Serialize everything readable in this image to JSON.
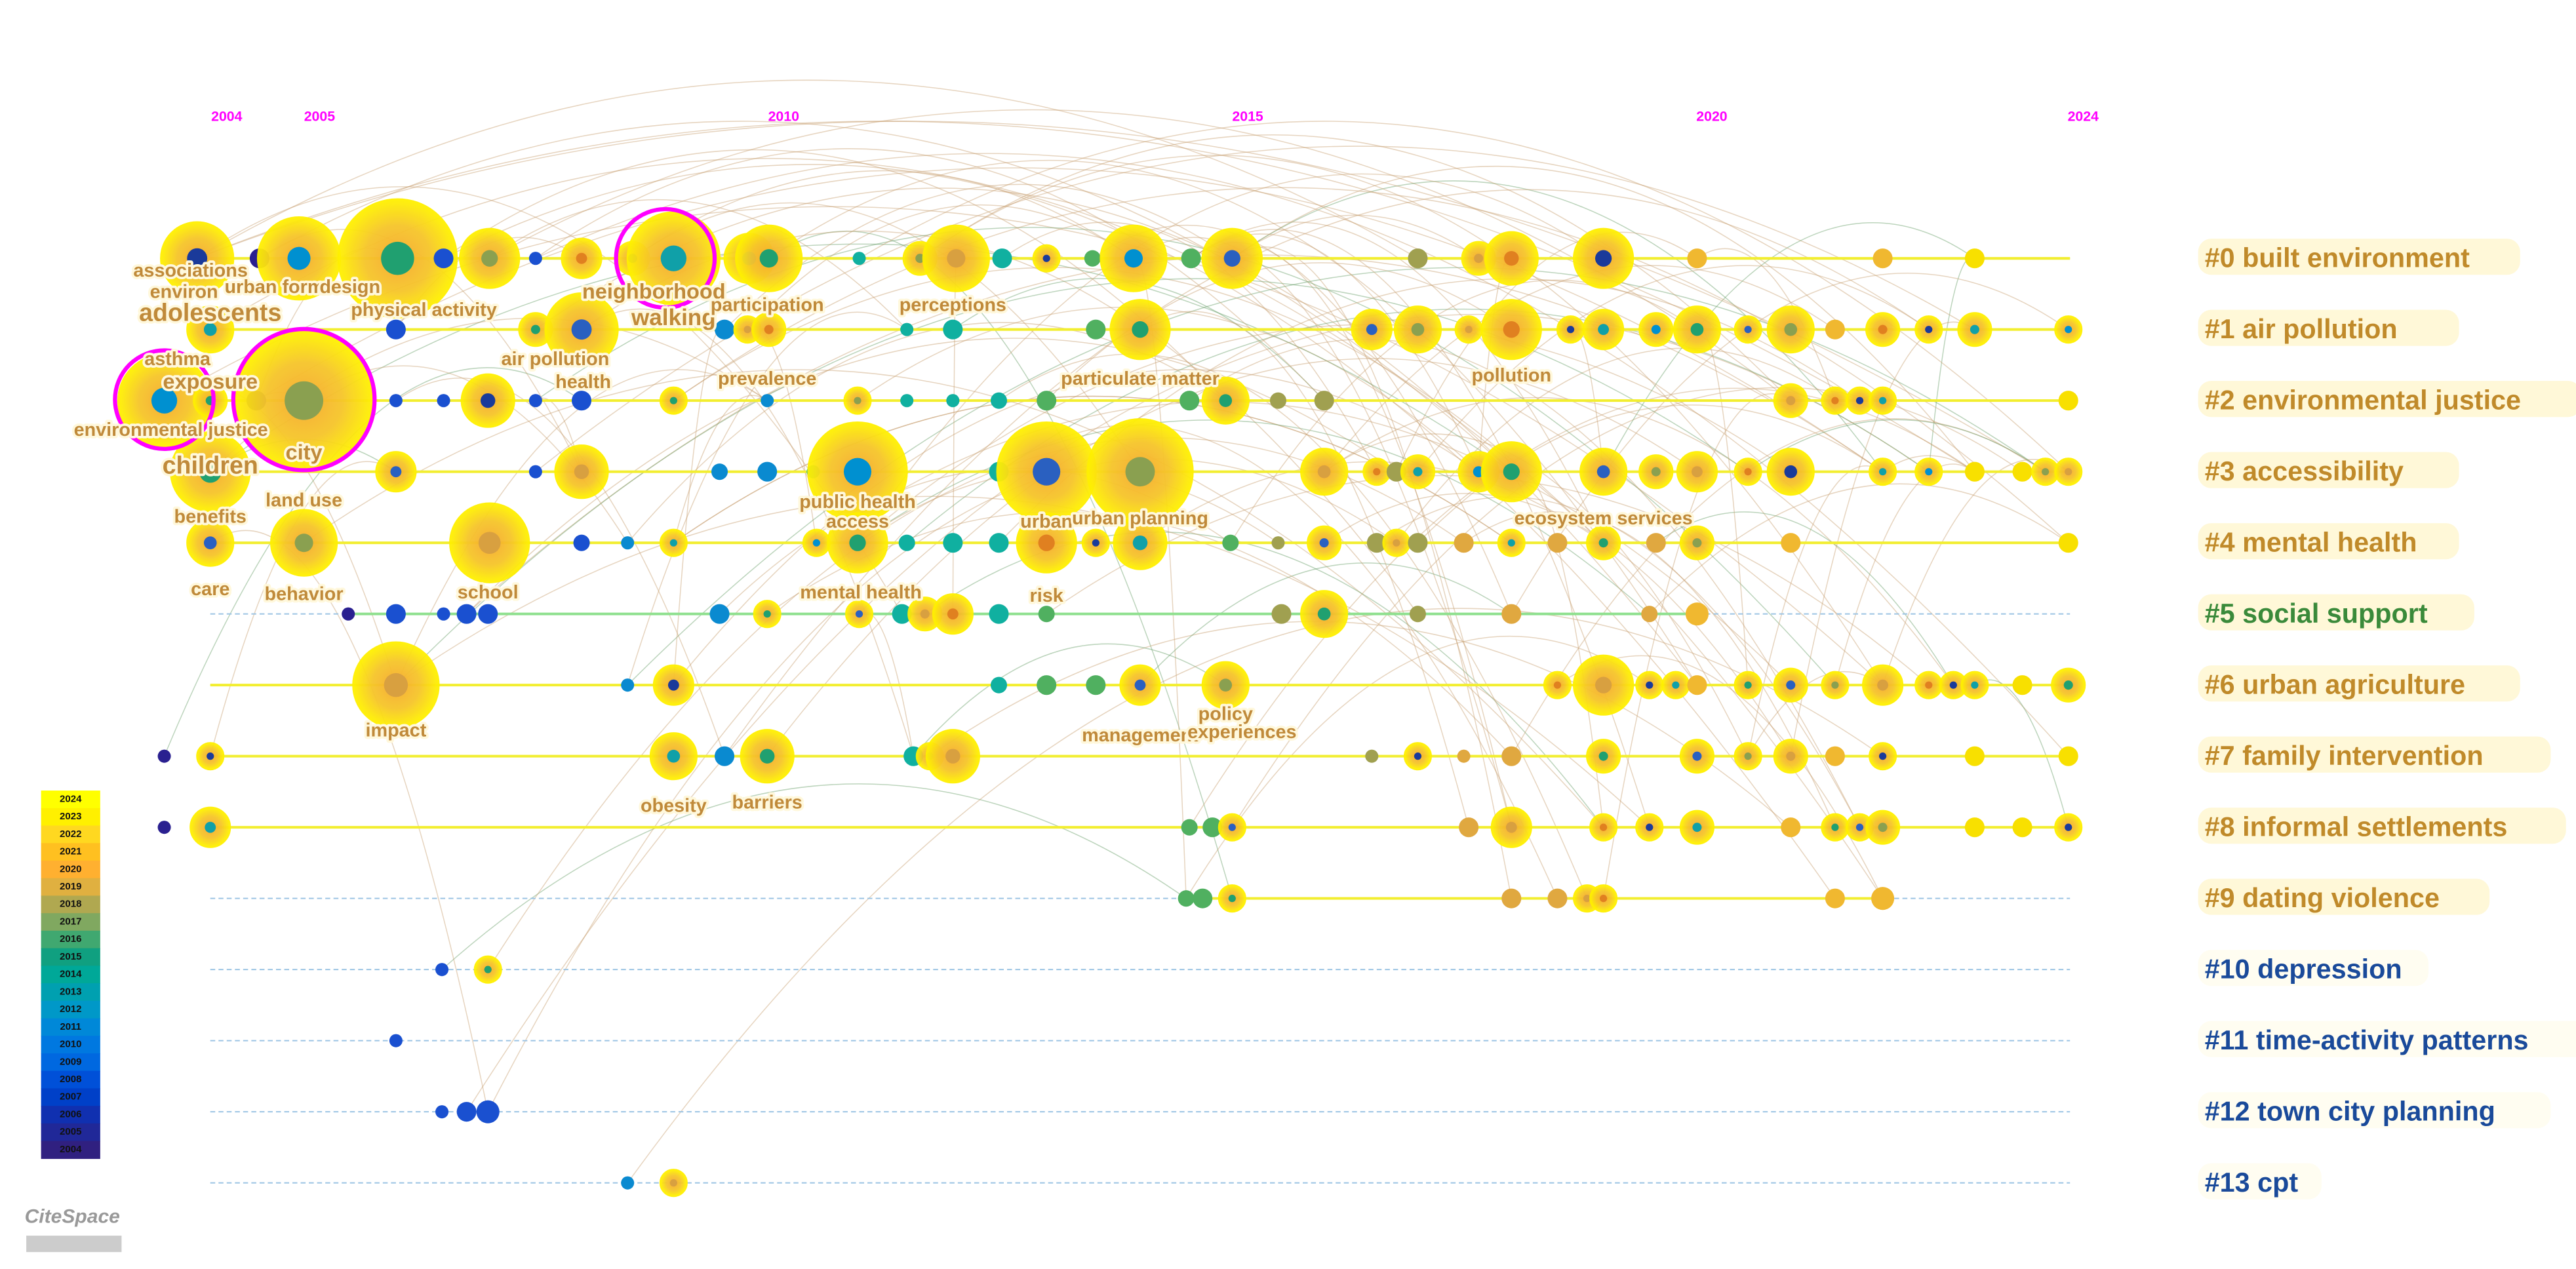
{
  "timeline": {
    "ticks": [
      2004,
      2005,
      2010,
      2015,
      2020,
      2024
    ]
  },
  "clusters": [
    {
      "label": "#0 built environment",
      "color": "#c08a2a"
    },
    {
      "label": "#1 air pollution",
      "color": "#c08a2a"
    },
    {
      "label": "#2 environmental justice",
      "color": "#c08a2a"
    },
    {
      "label": "#3 accessibility",
      "color": "#c08a2a"
    },
    {
      "label": "#4 mental health",
      "color": "#c08a2a"
    },
    {
      "label": "#5 social support",
      "color": "#3a8a3a"
    },
    {
      "label": "#6 urban agriculture",
      "color": "#c08a2a"
    },
    {
      "label": "#7 family intervention",
      "color": "#c08a2a"
    },
    {
      "label": "#8 informal settlements",
      "color": "#c08a2a"
    },
    {
      "label": "#9 dating violence",
      "color": "#c08a2a"
    },
    {
      "label": "#10 depression",
      "color": "#1a4a9a"
    },
    {
      "label": "#11 time-activity patterns",
      "color": "#1a4a9a"
    },
    {
      "label": "#12 town city planning",
      "color": "#1a4a9a"
    },
    {
      "label": "#13 cpt",
      "color": "#1a4a9a"
    }
  ],
  "keywords": [
    "associations",
    "environ",
    "urban form",
    "design",
    "physical activity",
    "adolescents",
    "neighborhood",
    "walking",
    "participation",
    "perceptions",
    "asthma",
    "exposure",
    "air pollution",
    "health",
    "prevalence",
    "particulate matter",
    "pollution",
    "environmental justice",
    "city",
    "children",
    "land use",
    "public health",
    "access",
    "urban",
    "urban planning",
    "benefits",
    "ecosystem services",
    "care",
    "behavior",
    "school",
    "mental health",
    "risk",
    "impact",
    "management",
    "policy",
    "experiences",
    "obesity",
    "barriers"
  ],
  "legend": [
    2024,
    2023,
    2022,
    2021,
    2020,
    2019,
    2018,
    2017,
    2016,
    2015,
    2014,
    2013,
    2012,
    2011,
    2010,
    2009,
    2008,
    2007,
    2006,
    2005,
    2004
  ],
  "logo": "CiteSpace"
}
